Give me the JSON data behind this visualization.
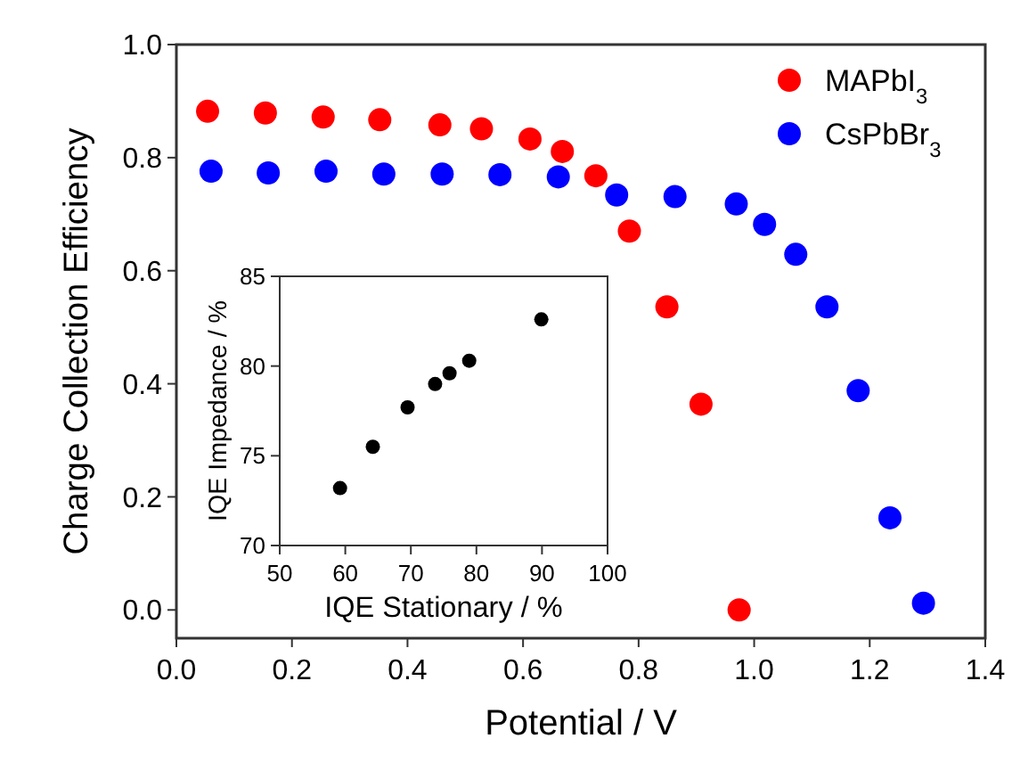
{
  "chart_data": [
    {
      "type": "scatter",
      "xlabel": "Potential / V",
      "ylabel": "Charge Collection Efficiency",
      "xlim": [
        0,
        1.4
      ],
      "ylim": [
        -0.05,
        1.0
      ],
      "xticks": [
        {
          "value": 0,
          "label": "0.0"
        },
        0.2,
        0.4,
        0.6,
        0.8,
        {
          "value": 1,
          "label": "1.0"
        },
        1.2,
        1.4
      ],
      "yticks": [
        {
          "value": 0,
          "label": "0.0"
        },
        0.2,
        0.4,
        0.6,
        0.8,
        {
          "value": 1,
          "label": "1.0"
        }
      ],
      "legend": "top right",
      "marker": "circle",
      "grid": false,
      "series": [
        {
          "name": "MAPbI$_{3}$",
          "color": "#ff0000",
          "x": [
            0.054,
            0.154,
            0.254,
            0.352,
            0.456,
            0.528,
            0.612,
            0.668,
            0.726,
            0.784,
            0.849,
            0.908,
            0.974
          ],
          "values": [
            0.882,
            0.879,
            0.872,
            0.867,
            0.858,
            0.851,
            0.833,
            0.811,
            0.768,
            0.67,
            0.536,
            0.364,
            0.0
          ]
        },
        {
          "name": "CsPbBr$_{3}$",
          "color": "#0000ff",
          "x": [
            0.06,
            0.159,
            0.259,
            0.359,
            0.46,
            0.56,
            0.661,
            0.762,
            0.863,
            0.969,
            1.018,
            1.072,
            1.126,
            1.18,
            1.235,
            1.293
          ],
          "values": [
            0.776,
            0.773,
            0.776,
            0.771,
            0.771,
            0.77,
            0.766,
            0.734,
            0.731,
            0.718,
            0.682,
            0.629,
            0.536,
            0.388,
            0.163,
            0.012
          ]
        }
      ]
    },
    {
      "type": "scatter",
      "xlabel": "IQE Stationary / %",
      "ylabel": "IQE Impedance / %",
      "xlim": [
        50,
        100
      ],
      "ylim": [
        70,
        85
      ],
      "xticks": [
        50,
        60,
        70,
        80,
        90,
        100
      ],
      "yticks": [
        70,
        75,
        80,
        85
      ],
      "marker": "circle",
      "grid": false,
      "series": [
        {
          "color": "#000000",
          "x": [
            59.2,
            64.2,
            69.5,
            73.7,
            75.9,
            78.9,
            89.9
          ],
          "values": [
            73.2,
            75.5,
            77.7,
            79.0,
            79.6,
            80.3,
            82.6
          ]
        }
      ]
    }
  ]
}
